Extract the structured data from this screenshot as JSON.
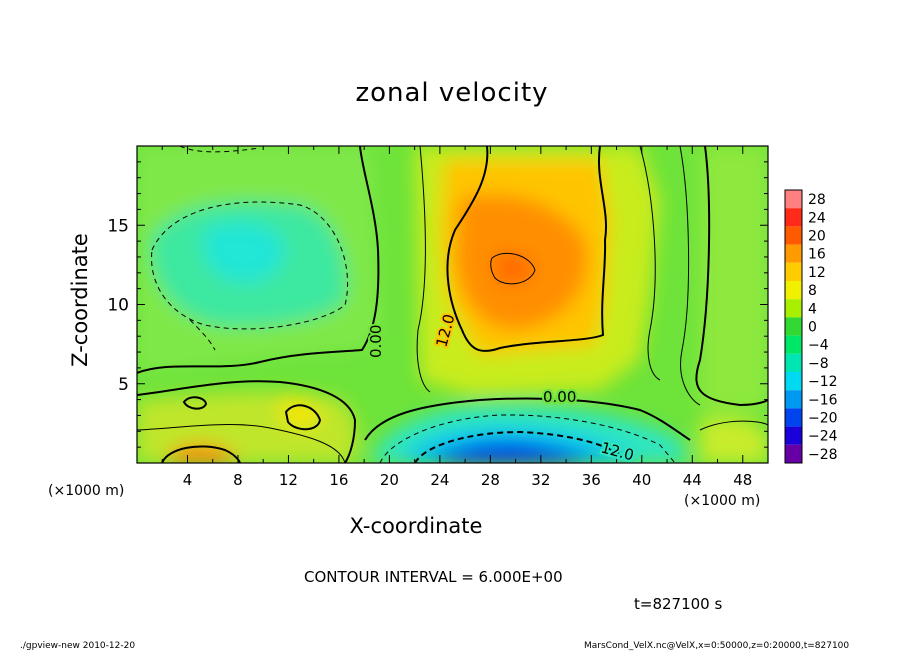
{
  "chart_data": {
    "type": "heatmap",
    "title": "zonal velocity",
    "xlabel": "X-coordinate",
    "ylabel": "Z-coordinate",
    "x_unit_label": "(×1000 m)",
    "xlim": [
      0,
      50
    ],
    "ylim": [
      0,
      20
    ],
    "x_ticks": [
      4,
      8,
      12,
      16,
      20,
      24,
      28,
      32,
      36,
      40,
      44,
      48
    ],
    "y_ticks": [
      5,
      10,
      15
    ],
    "colorbar": {
      "levels": [
        28,
        24,
        20,
        16,
        12,
        8,
        4,
        0,
        -4,
        -8,
        -12,
        -16,
        -20,
        -24,
        -28
      ],
      "colors": [
        "#ff8080",
        "#ff2a1a",
        "#ff5a00",
        "#ff9a00",
        "#ffcc00",
        "#f0f000",
        "#a8f000",
        "#33d933",
        "#00e666",
        "#00e6b3",
        "#00d9f0",
        "#0099f0",
        "#0044f0",
        "#1a00d9",
        "#6600a6"
      ]
    },
    "contour_labels": [
      "0.00",
      "12.0",
      "0.00",
      "12.0"
    ],
    "contour_interval_text": "CONTOUR INTERVAL = 6.000E+00",
    "time_text": "t=827100 s"
  },
  "footer": {
    "left": "./gpview-new   2010-12-20",
    "right": "MarsCond_VelX.nc@VelX,x=0:50000,z=0:20000,t=827100"
  }
}
